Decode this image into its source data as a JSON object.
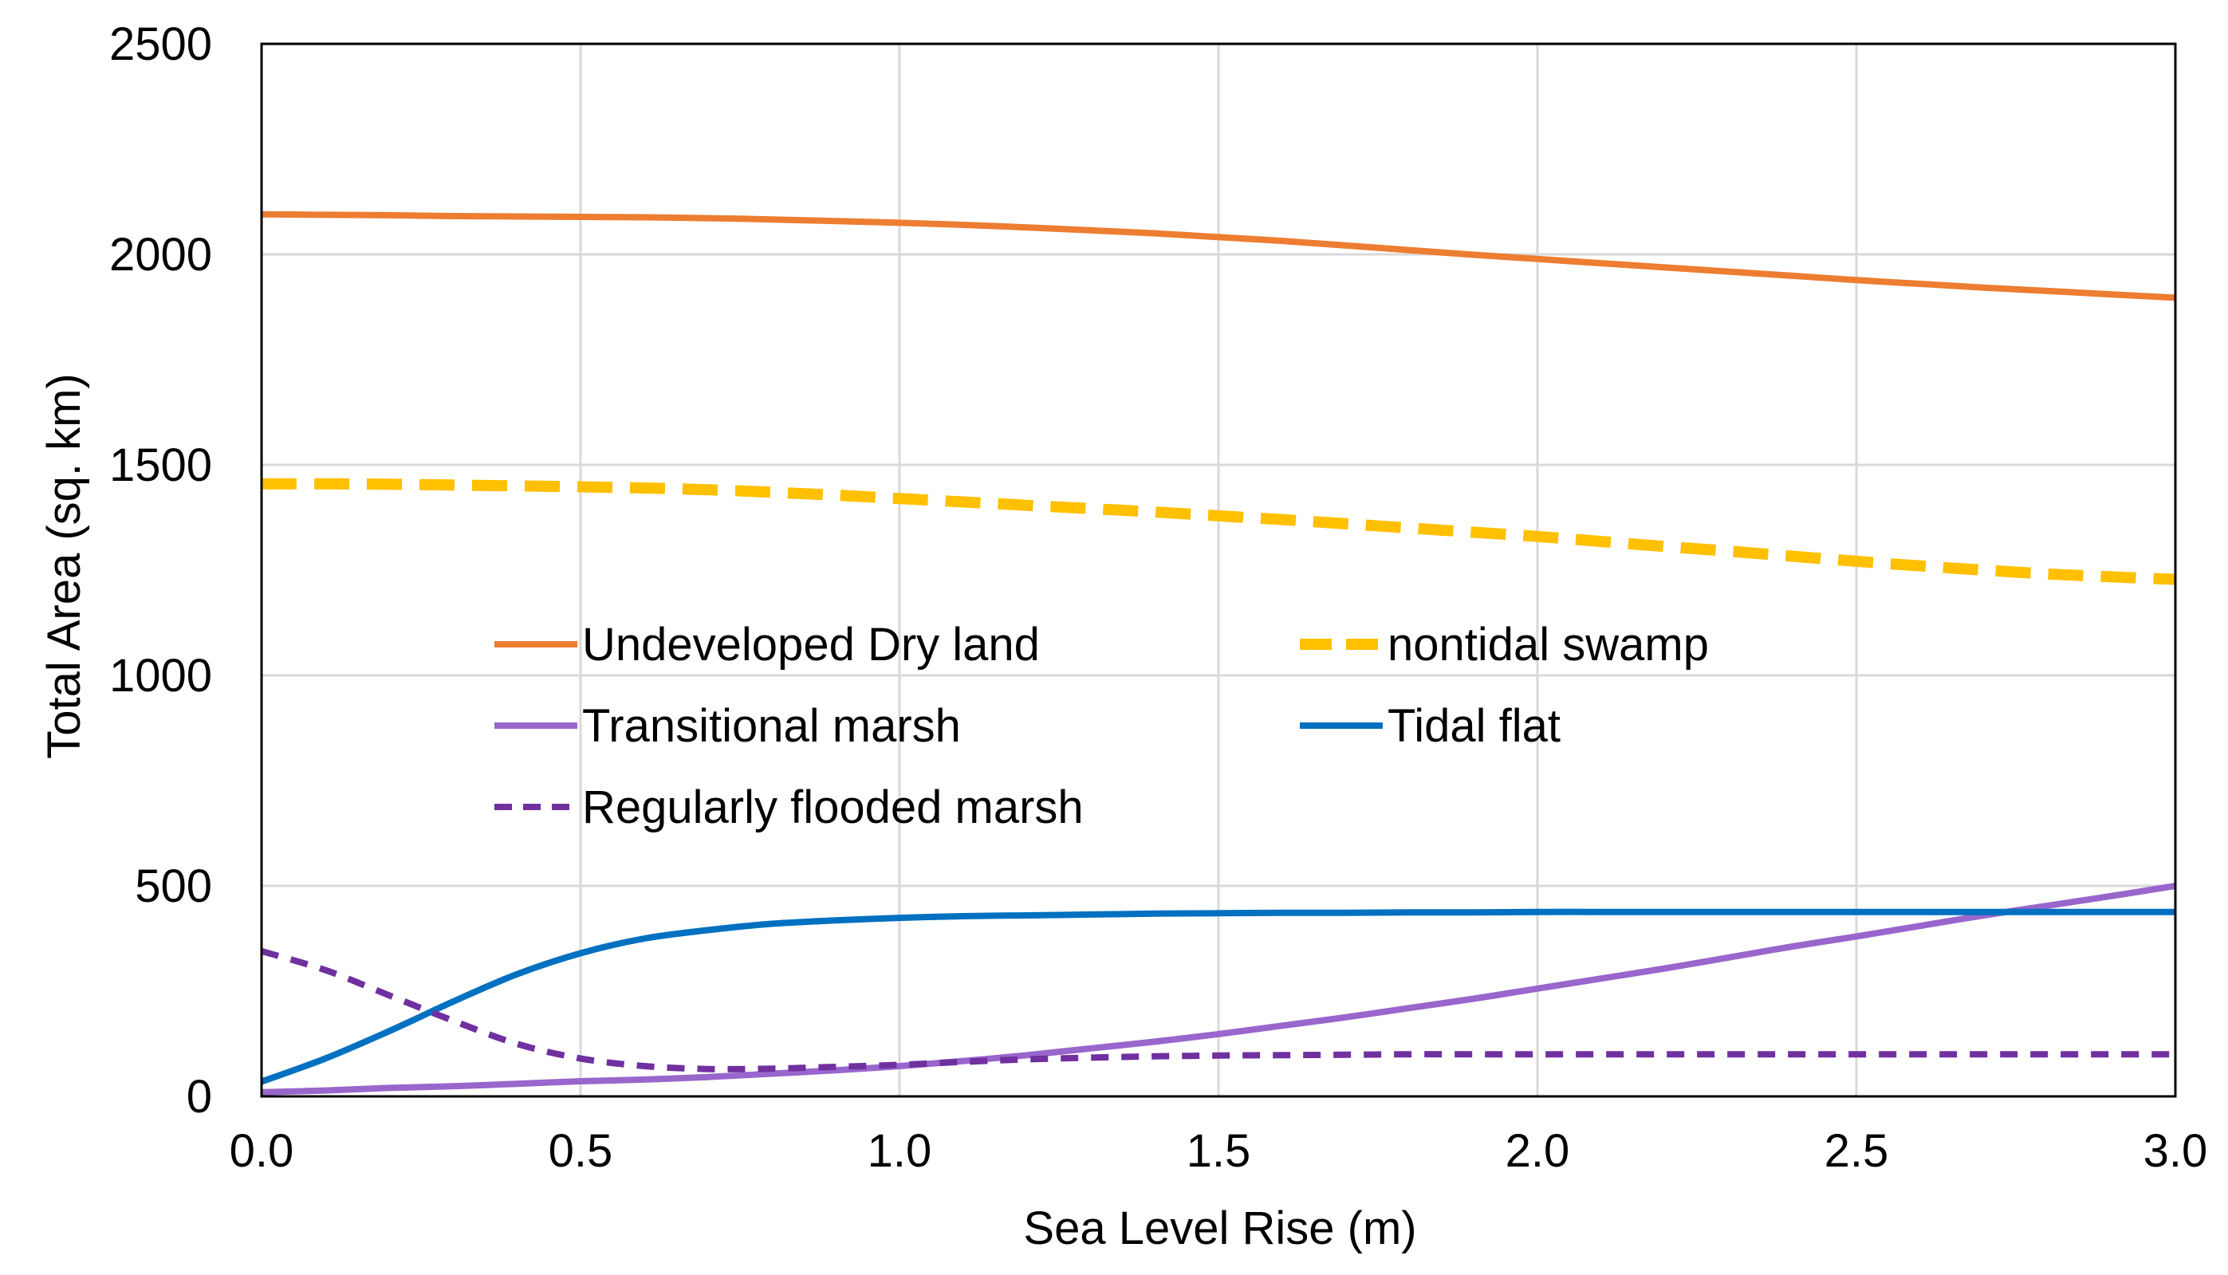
{
  "chart_data": {
    "type": "line",
    "title": "",
    "xlabel": "Sea Level Rise (m)",
    "ylabel": "Total Area (sq. km)",
    "xlim": [
      0,
      3
    ],
    "ylim": [
      0,
      2500
    ],
    "x_ticks": [
      "0.0",
      "0.5",
      "1.0",
      "1.5",
      "2.0",
      "2.5",
      "3.0"
    ],
    "y_ticks": [
      "0",
      "500",
      "1000",
      "1500",
      "2000",
      "2500"
    ],
    "grid": "vertical",
    "legend_position": "inside-middle",
    "x": [
      0.0,
      0.1,
      0.2,
      0.3,
      0.4,
      0.5,
      0.6,
      0.7,
      0.8,
      0.9,
      1.0,
      1.1,
      1.2,
      1.3,
      1.4,
      1.5,
      1.6,
      1.7,
      1.8,
      1.9,
      2.0,
      2.1,
      2.2,
      2.3,
      2.4,
      2.5,
      2.6,
      2.7,
      2.8,
      2.9,
      3.0
    ],
    "series": [
      {
        "name": "Undeveloped Dry land",
        "color": "#ED7D31",
        "dash": "solid",
        "values": [
          2095,
          2094,
          2093,
          2091,
          2090,
          2089,
          2088,
          2086,
          2083,
          2079,
          2075,
          2070,
          2064,
          2057,
          2050,
          2041,
          2032,
          2021,
          2010,
          1999,
          1989,
          1979,
          1969,
          1959,
          1949,
          1939,
          1930,
          1921,
          1913,
          1905,
          1897
        ]
      },
      {
        "name": "nontidal swamp",
        "color": "#FFC000",
        "dash": "dashed",
        "values": [
          1455,
          1455,
          1454,
          1452,
          1450,
          1448,
          1445,
          1441,
          1435,
          1428,
          1420,
          1412,
          1404,
          1396,
          1388,
          1379,
          1370,
          1360,
          1350,
          1340,
          1330,
          1318,
          1306,
          1295,
          1283,
          1271,
          1260,
          1250,
          1241,
          1234,
          1228
        ]
      },
      {
        "name": "Transitional marsh",
        "color": "#9966CC",
        "dash": "solid",
        "values": [
          10,
          14,
          20,
          24,
          30,
          36,
          40,
          46,
          54,
          62,
          72,
          84,
          98,
          114,
          130,
          148,
          168,
          188,
          210,
          232,
          256,
          280,
          304,
          330,
          356,
          380,
          405,
          430,
          453,
          476,
          500
        ]
      },
      {
        "name": "Tidal flat",
        "color": "#0070C0",
        "dash": "solid",
        "values": [
          35,
          90,
          155,
          225,
          290,
          340,
          375,
          395,
          410,
          418,
          424,
          428,
          430,
          432,
          434,
          435,
          436,
          436,
          437,
          437,
          438,
          438,
          438,
          438,
          438,
          438,
          438,
          438,
          438,
          438,
          438
        ]
      },
      {
        "name": "Regularly flooded marsh",
        "color": "#7030A0",
        "dash": "short-dash",
        "values": [
          345,
          300,
          240,
          180,
          125,
          90,
          72,
          65,
          66,
          70,
          75,
          82,
          88,
          92,
          95,
          97,
          98,
          99,
          100,
          100,
          100,
          100,
          100,
          100,
          100,
          100,
          100,
          100,
          100,
          100,
          100
        ]
      }
    ]
  }
}
